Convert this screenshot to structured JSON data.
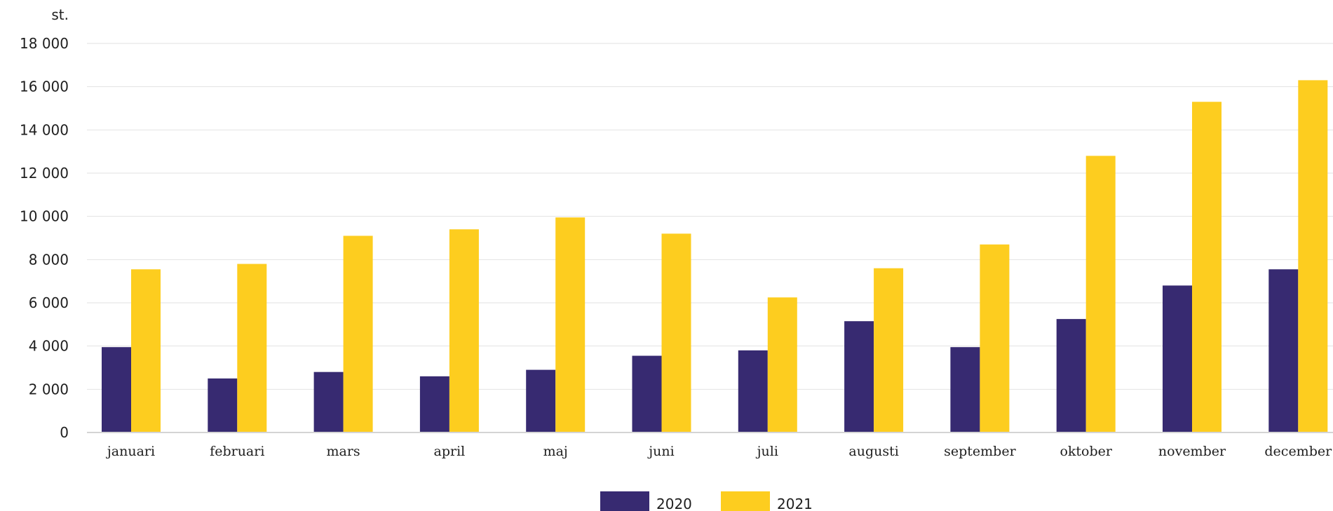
{
  "chart_data": {
    "type": "bar",
    "unit_label": "st.",
    "categories": [
      "januari",
      "februari",
      "mars",
      "april",
      "maj",
      "juni",
      "juli",
      "augusti",
      "september",
      "oktober",
      "november",
      "december"
    ],
    "series": [
      {
        "name": "2020",
        "color": "#372a71",
        "values": [
          3950,
          2500,
          2800,
          2600,
          2900,
          3550,
          3800,
          5150,
          3950,
          5250,
          6800,
          7550
        ]
      },
      {
        "name": "2021",
        "color": "#fdcd1f",
        "values": [
          7550,
          7800,
          9100,
          9400,
          9950,
          9200,
          6250,
          7600,
          8700,
          12800,
          15300,
          16300
        ]
      }
    ],
    "ylim": [
      0,
      18000
    ],
    "yticks": [
      {
        "value": 0,
        "label": "0"
      },
      {
        "value": 2000,
        "label": "2 000"
      },
      {
        "value": 4000,
        "label": "4 000"
      },
      {
        "value": 6000,
        "label": "6 000"
      },
      {
        "value": 8000,
        "label": "8 000"
      },
      {
        "value": 10000,
        "label": "10 000"
      },
      {
        "value": 12000,
        "label": "12 000"
      },
      {
        "value": 14000,
        "label": "14 000"
      },
      {
        "value": 16000,
        "label": "16 000"
      },
      {
        "value": 18000,
        "label": "18 000"
      }
    ],
    "grid": true,
    "legend_position": "bottom-center"
  }
}
